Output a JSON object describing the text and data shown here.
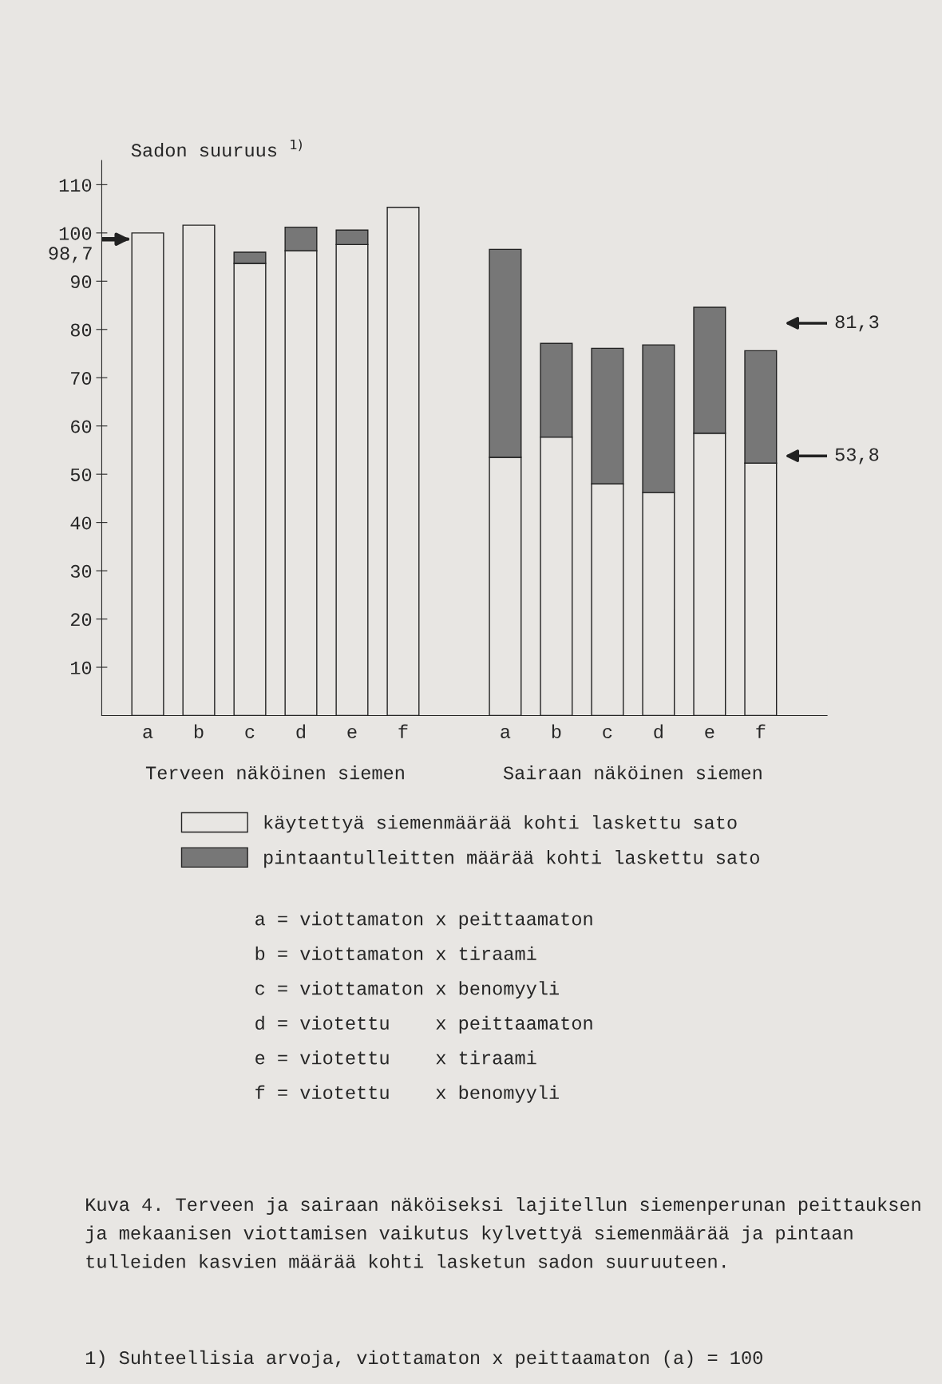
{
  "chart_data": {
    "type": "bar",
    "stacked": true,
    "ylabel": "Sadon suuruus $^{1)}$",
    "categories": [
      "a",
      "b",
      "c",
      "d",
      "e",
      "f",
      null,
      "a",
      "b",
      "c",
      "d",
      "e",
      "f"
    ],
    "series": [
      {
        "name": "käytettyä siemenmäärää kohti laskettu sato",
        "color": "#e8e6e3",
        "values": [
          100,
          101.6,
          93.7,
          96.3,
          97.6,
          105.3,
          null,
          53.5,
          57.7,
          48.0,
          46.2,
          58.5,
          52.3
        ]
      },
      {
        "name": "pintaantulleitten määrää kohti laskettu sato",
        "color": "#777777",
        "values": [
          null,
          null,
          2.3,
          4.9,
          3.0,
          null,
          null,
          43.1,
          19.4,
          28.1,
          30.6,
          26.1,
          23.3
        ]
      }
    ],
    "ylim": [
      0,
      115
    ],
    "yticks": [
      10,
      20,
      30,
      40,
      50,
      60,
      70,
      80,
      90,
      100,
      110
    ],
    "legend": "bottom",
    "ref_lines": [
      {
        "axis": "y",
        "value": 98.7,
        "label": "98,7"
      },
      {
        "axis": "y",
        "value": 81.3,
        "label": "81,3"
      },
      {
        "axis": "y",
        "value": 53.8,
        "label": "53,8"
      }
    ],
    "annotations": [
      "Terveen näköinen siemen",
      "Sairaan näköinen siemen",
      "a = viottamaton x peittaamaton",
      "b = viottamaton x tiraami",
      "c = viottamaton x benomyyli",
      "d = viotettu    x peittaamaton",
      "e = viotettu    x tiraami",
      "f = viotettu    x benomyyli",
      "Kuva 4. Terveen ja sairaan näköiseksi lajitellun siemenperunan peittauksen ja mekaanisen viottamisen vaikutus kylvettyä siemenmäärää ja pintaan tulleiden kasvien määrää kohti lasketun sadon suuruuteen.",
      "1) Suhteellisia arvoja, viottamaton x peittaamaton (a) = 100"
    ]
  }
}
